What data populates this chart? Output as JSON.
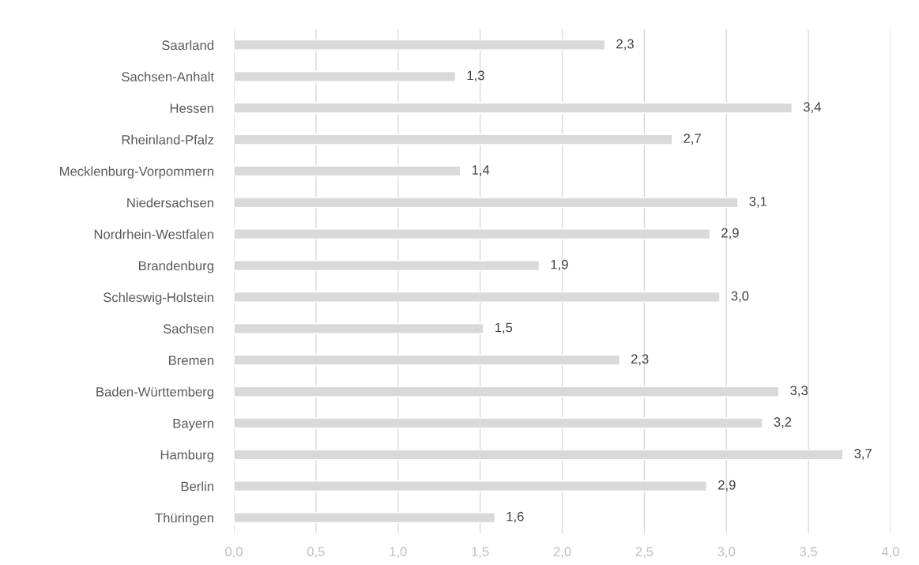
{
  "chart_data": {
    "type": "bar",
    "orientation": "horizontal",
    "categories": [
      "Saarland",
      "Sachsen-Anhalt",
      "Hessen",
      "Rheinland-Pfalz",
      "Mecklenburg-Vorpommern",
      "Niedersachsen",
      "Nordrhein-Westfalen",
      "Brandenburg",
      "Schleswig-Holstein",
      "Sachsen",
      "Bremen",
      "Baden-Württemberg",
      "Bayern",
      "Hamburg",
      "Berlin",
      "Thüringen"
    ],
    "values": [
      2.26,
      1.35,
      3.4,
      2.67,
      1.38,
      3.07,
      2.9,
      1.86,
      2.96,
      1.52,
      2.35,
      3.32,
      3.22,
      3.71,
      2.88,
      1.59
    ],
    "value_labels": [
      "2,3",
      "1,3",
      "3,4",
      "2,7",
      "1,4",
      "3,1",
      "2,9",
      "1,9",
      "3,0",
      "1,5",
      "2,3",
      "3,3",
      "3,2",
      "3,7",
      "2,9",
      "1,6"
    ],
    "color": "#d9d9d9",
    "xlim": [
      0,
      4.0
    ],
    "xticks": [
      {
        "value": 0,
        "label": "0,0"
      },
      {
        "value": 0.5,
        "label": "0,5"
      },
      {
        "value": 1.0,
        "label": "1,0"
      },
      {
        "value": 1.5,
        "label": "1,5"
      },
      {
        "value": 2.0,
        "label": "2,0"
      },
      {
        "value": 2.5,
        "label": "2,5"
      },
      {
        "value": 3.0,
        "label": "3,0"
      },
      {
        "value": 3.5,
        "label": "3,5"
      },
      {
        "value": 4.0,
        "label": "4,0"
      }
    ],
    "grid": "x",
    "legend": false
  }
}
